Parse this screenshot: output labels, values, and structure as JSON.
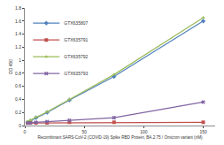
{
  "chart_data": {
    "type": "line",
    "x_label": "Recombinant SARS-CoV-2 (COVID-19) Spike RBD Protein, BA.2.75 / Omicron variant (nM)",
    "y_label": "OD 450",
    "x": [
      2.34375,
      4.6875,
      9.375,
      18.75,
      37.5,
      75,
      150
    ],
    "series": [
      {
        "name": "GTX635807",
        "color": "#4f81bd",
        "marker": "diamond",
        "values": [
          0.05,
          0.07,
          0.12,
          0.2,
          0.39,
          0.75,
          1.6
        ]
      },
      {
        "name": "GTX635791",
        "color": "#c0504d",
        "marker": "square",
        "values": [
          0.04,
          0.04,
          0.04,
          0.04,
          0.05,
          0.05,
          0.05
        ]
      },
      {
        "name": "GTX635792",
        "color": "#9bbb59",
        "marker": "triangle-up",
        "values": [
          0.06,
          0.08,
          0.13,
          0.21,
          0.4,
          0.78,
          1.65
        ]
      },
      {
        "name": "GTX635793",
        "color": "#8064a2",
        "marker": "x",
        "values": [
          0.04,
          0.04,
          0.05,
          0.06,
          0.08,
          0.12,
          0.36
        ]
      }
    ],
    "xlim": [
      0,
      160
    ],
    "xticks": [
      0,
      50,
      100,
      150
    ],
    "ylim": [
      0,
      1.8
    ],
    "yticks": [
      0,
      0.2,
      0.4,
      0.6,
      0.8,
      1,
      1.2,
      1.4,
      1.6,
      1.8
    ],
    "grid": false,
    "legend": "top-left"
  }
}
